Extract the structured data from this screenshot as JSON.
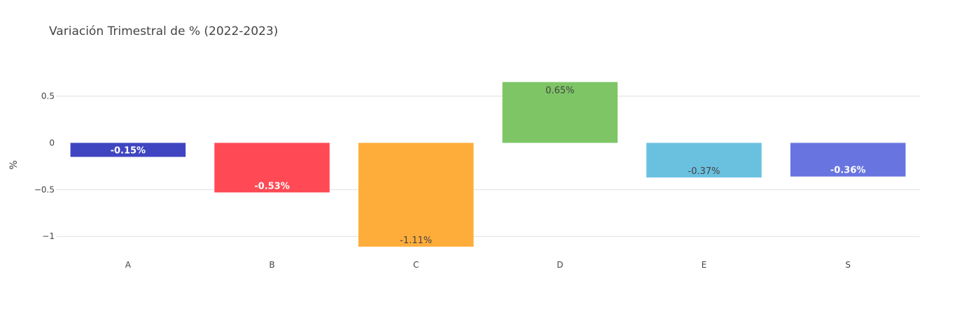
{
  "chart_data": {
    "type": "bar",
    "title": "Variación Trimestral de % (2022-2023)",
    "xlabel": "",
    "ylabel": "%",
    "categories": [
      "A",
      "B",
      "C",
      "D",
      "E",
      "S"
    ],
    "values": [
      -0.15,
      -0.53,
      -1.11,
      0.65,
      -0.37,
      -0.36
    ],
    "data_labels": [
      "-0.15%",
      "-0.53%",
      "-1.11%",
      "0.65%",
      "-0.37%",
      "-0.36%"
    ],
    "colors": [
      "#3f45c1",
      "#ff4a55",
      "#ffad3a",
      "#7dc565",
      "#69c1df",
      "#6874e0"
    ],
    "label_styles": [
      "light",
      "light",
      "dark",
      "dark",
      "dark",
      "light"
    ],
    "yticks": [
      0.5,
      0,
      -0.5,
      -1
    ],
    "ytick_labels": [
      "0.5",
      "0",
      "−0.5",
      "−1"
    ],
    "ylim": [
      -1.185,
      0.795
    ],
    "grid": true,
    "legend": "none"
  }
}
